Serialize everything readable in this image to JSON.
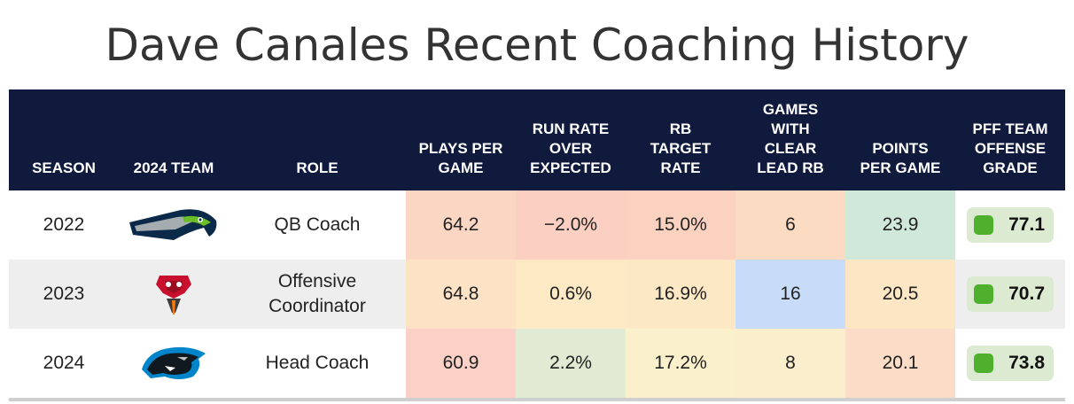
{
  "title": "Dave Canales Recent Coaching History",
  "colors": {
    "header_bg": "#0f1a3c",
    "grade_badge": "#dbead0",
    "grade_dot": "#4fb02e"
  },
  "chart_data": {
    "type": "table",
    "title": "Dave Canales Recent Coaching History",
    "columns": [
      {
        "key": "season",
        "label": "SEASON"
      },
      {
        "key": "team",
        "label": "2024 TEAM"
      },
      {
        "key": "role",
        "label": "ROLE"
      },
      {
        "key": "plays",
        "label": "PLAYS PER GAME"
      },
      {
        "key": "roe",
        "label": "RUN RATE OVER EXPECTED"
      },
      {
        "key": "rbt",
        "label": "RB TARGET RATE"
      },
      {
        "key": "lead",
        "label": "GAMES WITH CLEAR LEAD RB"
      },
      {
        "key": "ppg",
        "label": "POINTS PER GAME"
      },
      {
        "key": "grade",
        "label": "PFF TEAM OFFENSE GRADE"
      }
    ],
    "rows": [
      {
        "season": "2022",
        "team_icon": "seahawks-logo-icon",
        "role": "QB Coach",
        "plays": "64.2",
        "roe": "−2.0%",
        "rbt": "15.0%",
        "lead": "6",
        "ppg": "23.9",
        "grade": "77.1",
        "fills": {
          "plays": "#fbd6c2",
          "roe": "#fbd0c2",
          "rbt": "#fbd2c0",
          "lead": "#fbdcc2",
          "ppg": "#cfe8da"
        }
      },
      {
        "season": "2023",
        "team_icon": "buccaneers-logo-icon",
        "role": "Offensive Coordinator",
        "plays": "64.8",
        "roe": "0.6%",
        "rbt": "16.9%",
        "lead": "16",
        "ppg": "20.5",
        "grade": "70.7",
        "fills": {
          "plays": "#fde2c6",
          "roe": "#fdeac4",
          "rbt": "#fde8c6",
          "lead": "#c8dcf9",
          "ppg": "#fde6c4"
        }
      },
      {
        "season": "2024",
        "team_icon": "panthers-logo-icon",
        "role": "Head Coach",
        "plays": "60.9",
        "roe": "2.2%",
        "rbt": "17.2%",
        "lead": "8",
        "ppg": "20.1",
        "grade": "73.8",
        "fills": {
          "plays": "#fbd0c6",
          "roe": "#e1ebd3",
          "rbt": "#fbf0cc",
          "lead": "#fbeecc",
          "ppg": "#fbdcc6"
        }
      }
    ]
  }
}
